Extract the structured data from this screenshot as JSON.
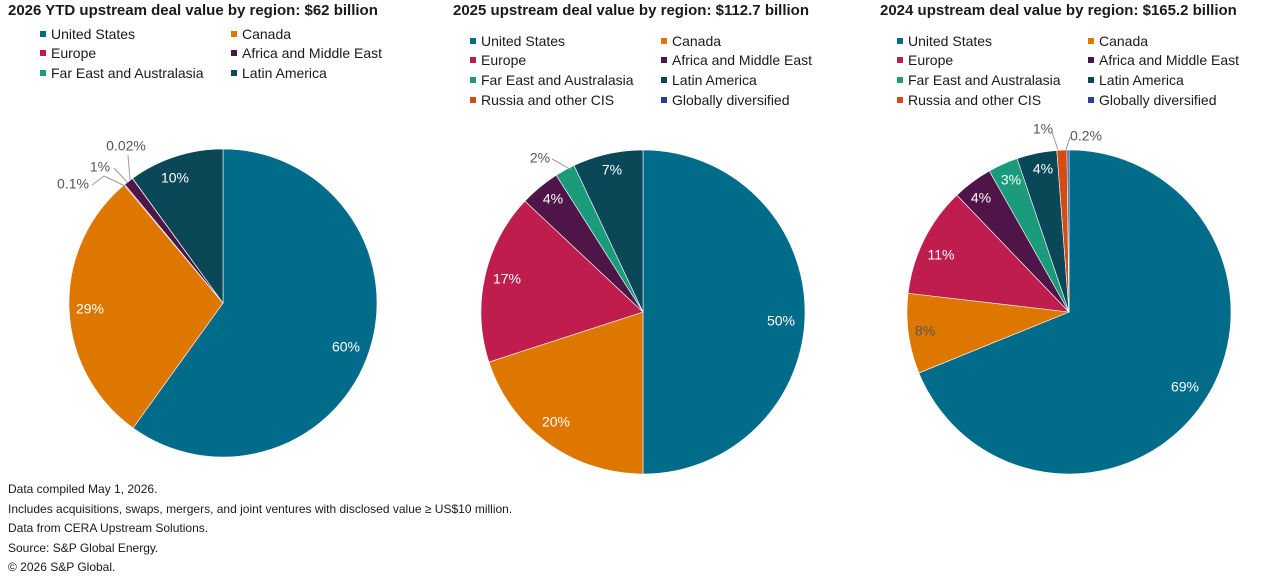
{
  "colors": {
    "United States": "#006c8a",
    "Canada": "#de7700",
    "Europe": "#c01d4f",
    "Africa and Middle East": "#4f1548",
    "Far East and Australasia": "#1a9b7c",
    "Latin America": "#0a4858",
    "Russia and other CIS": "#d24d12",
    "Globally diversified": "#2e3c94"
  },
  "chart_data": [
    {
      "type": "pie",
      "title": "2026 YTD upstream deal value by region: $62 billion",
      "legend": [
        "United States",
        "Canada",
        "Europe",
        "Africa and Middle East",
        "Far East and Australasia",
        "Latin America"
      ],
      "slices": [
        {
          "name": "United States",
          "value": 60,
          "label": "60%"
        },
        {
          "name": "Canada",
          "value": 29,
          "label": "29%"
        },
        {
          "name": "Europe",
          "value": 0.1,
          "label": "0.1%"
        },
        {
          "name": "Africa and Middle East",
          "value": 1,
          "label": "1%"
        },
        {
          "name": "Far East and Australasia",
          "value": 0.02,
          "label": "0.02%"
        },
        {
          "name": "Latin America",
          "value": 10,
          "label": "10%"
        }
      ]
    },
    {
      "type": "pie",
      "title": "2025 upstream deal value by region: $112.7 billion",
      "legend": [
        "United States",
        "Canada",
        "Europe",
        "Africa and Middle East",
        "Far East and Australasia",
        "Latin America",
        "Russia and other CIS",
        "Globally diversified"
      ],
      "slices": [
        {
          "name": "United States",
          "value": 50,
          "label": "50%"
        },
        {
          "name": "Canada",
          "value": 20,
          "label": "20%"
        },
        {
          "name": "Europe",
          "value": 17,
          "label": "17%"
        },
        {
          "name": "Africa and Middle East",
          "value": 4,
          "label": "4%"
        },
        {
          "name": "Far East and Australasia",
          "value": 2,
          "label": "2%"
        },
        {
          "name": "Latin America",
          "value": 7,
          "label": "7%"
        }
      ]
    },
    {
      "type": "pie",
      "title": "2024 upstream deal value by region: $165.2 billion",
      "legend": [
        "United States",
        "Canada",
        "Europe",
        "Africa and Middle East",
        "Far East and Australasia",
        "Latin America",
        "Russia and other CIS",
        "Globally diversified"
      ],
      "slices": [
        {
          "name": "United States",
          "value": 69,
          "label": "69%"
        },
        {
          "name": "Canada",
          "value": 8,
          "label": "8%"
        },
        {
          "name": "Europe",
          "value": 11,
          "label": "11%"
        },
        {
          "name": "Africa and Middle East",
          "value": 4,
          "label": "4%"
        },
        {
          "name": "Far East and Australasia",
          "value": 3,
          "label": "3%"
        },
        {
          "name": "Latin America",
          "value": 4,
          "label": "4%"
        },
        {
          "name": "Russia and other CIS",
          "value": 1,
          "label": "1%"
        },
        {
          "name": "Globally diversified",
          "value": 0.2,
          "label": "0.2%"
        }
      ]
    }
  ],
  "footnotes": [
    "Data compiled May 1, 2026.",
    "Includes acquisitions, swaps, mergers, and joint ventures with disclosed value ≥ US$10 million.",
    "Data from CERA Upstream Solutions.",
    "Source: S&P Global Energy.",
    "© 2026 S&P Global."
  ]
}
